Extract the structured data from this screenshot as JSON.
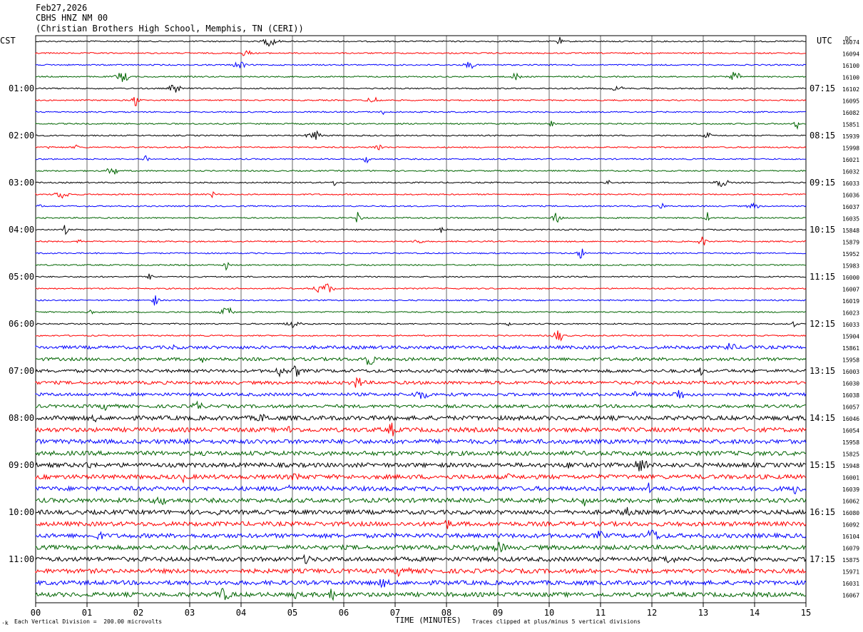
{
  "header": {
    "date": "Feb27,2026",
    "station": "CBHS HNZ NM 00",
    "location": "(Christian Brothers High School, Memphis, TN (CERI))"
  },
  "left_zone": "CST",
  "right_zone": "UTC",
  "dc_label": "DC",
  "footer": {
    "scale_note": "Each Vertical Division =  200.00 microvolts",
    "xlabel": "TIME (MINUTES)",
    "clip_note": "Traces clipped at plus/minus 5 vertical divisions",
    "corner_mark": "·k"
  },
  "chart_data": {
    "type": "line",
    "subtype": "helicorder",
    "xlabel": "TIME (MINUTES)",
    "xlim": [
      0,
      15
    ],
    "x_ticks": [
      "00",
      "01",
      "02",
      "03",
      "04",
      "05",
      "06",
      "07",
      "08",
      "09",
      "10",
      "11",
      "12",
      "13",
      "14",
      "15"
    ],
    "trace_colors": [
      "#000000",
      "#ff0000",
      "#0000ff",
      "#006400"
    ],
    "grid": "vertical lines at each minute",
    "left_labels": [
      "01:00",
      "02:00",
      "03:00",
      "04:00",
      "05:00",
      "06:00",
      "07:00",
      "08:00",
      "09:00",
      "10:00",
      "11:00"
    ],
    "right_labels": [
      "07:15",
      "08:15",
      "09:15",
      "10:15",
      "11:15",
      "12:15",
      "13:15",
      "14:15",
      "15:15",
      "16:15",
      "17:15"
    ],
    "dc_values": [
      "16074",
      "16094",
      "16100",
      "16100",
      "16102",
      "16095",
      "16082",
      "15851",
      "15939",
      "15998",
      "16021",
      "16032",
      "16033",
      "16036",
      "16037",
      "16035",
      "15848",
      "15879",
      "15952",
      "15983",
      "16000",
      "16007",
      "16019",
      "16023",
      "16033",
      "15904",
      "15861",
      "15958",
      "16003",
      "16030",
      "16038",
      "16057",
      "16046",
      "16054",
      "15958",
      "15825",
      "15948",
      "16001",
      "16039",
      "16062",
      "16080",
      "16092",
      "16104",
      "16079",
      "15875",
      "15971",
      "16031",
      "16067"
    ]
  }
}
